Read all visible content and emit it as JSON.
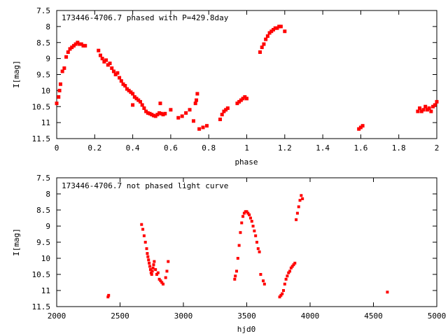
{
  "chart_data": [
    {
      "type": "scatter",
      "title": "173446-4706.7 phased with P=429.8day",
      "xlabel": "phase",
      "ylabel": "I[mag]",
      "xlim": [
        0,
        2
      ],
      "ylim": [
        7.5,
        11.5
      ],
      "y_inverted": true,
      "x_ticks": [
        "0",
        "0.2",
        "0.4",
        "0.6",
        "0.8",
        "1",
        "1.2",
        "1.4",
        "1.6",
        "1.8",
        "2"
      ],
      "y_ticks": [
        "7.5",
        "8",
        "8.5",
        "9",
        "9.5",
        "10",
        "10.5",
        "11",
        "11.5"
      ],
      "marker_color": "#ff0000",
      "series": [
        {
          "x": [
            0.0,
            0.01,
            0.015,
            0.02,
            0.03,
            0.04,
            0.05,
            0.06,
            0.07,
            0.08,
            0.09,
            0.1,
            0.11,
            0.12,
            0.13,
            0.14,
            0.15,
            0.22,
            0.23,
            0.24,
            0.25,
            0.26,
            0.27,
            0.28,
            0.29,
            0.3,
            0.31,
            0.32,
            0.33,
            0.34,
            0.35,
            0.36,
            0.37,
            0.38,
            0.39,
            0.4,
            0.41,
            0.42,
            0.43,
            0.44,
            0.45,
            0.46,
            0.47,
            0.48,
            0.49,
            0.5,
            0.51,
            0.52,
            0.53,
            0.54,
            0.55,
            0.56,
            0.57,
            0.4,
            0.545,
            0.6,
            0.64,
            0.66,
            0.68,
            0.7,
            0.72,
            0.73,
            0.735,
            0.74,
            0.75,
            0.77,
            0.79,
            0.86,
            0.87,
            0.88,
            0.89,
            0.9,
            0.95,
            0.96,
            0.97,
            0.98,
            0.99,
            1.0,
            1.07,
            1.08,
            1.09,
            1.1,
            1.11,
            1.12,
            1.13,
            1.14,
            1.15,
            1.16,
            1.17,
            1.18,
            1.2,
            1.59,
            1.6,
            1.61,
            1.9,
            1.91,
            1.92,
            1.93,
            1.94,
            1.95,
            1.96,
            1.97,
            1.98,
            1.99,
            2.0
          ],
          "y": [
            10.4,
            10.2,
            10.0,
            9.8,
            9.4,
            9.3,
            8.95,
            8.8,
            8.7,
            8.65,
            8.6,
            8.55,
            8.5,
            8.55,
            8.55,
            8.6,
            8.6,
            8.75,
            8.9,
            9.0,
            9.1,
            9.05,
            9.2,
            9.15,
            9.3,
            9.4,
            9.5,
            9.45,
            9.6,
            9.7,
            9.8,
            9.85,
            9.95,
            10.0,
            10.05,
            10.1,
            10.2,
            10.25,
            10.3,
            10.35,
            10.45,
            10.55,
            10.65,
            10.7,
            10.72,
            10.75,
            10.78,
            10.8,
            10.75,
            10.7,
            10.72,
            10.75,
            10.72,
            10.45,
            10.4,
            10.6,
            10.85,
            10.8,
            10.7,
            10.6,
            10.95,
            10.4,
            10.3,
            10.1,
            11.2,
            11.15,
            11.1,
            10.9,
            10.75,
            10.65,
            10.6,
            10.55,
            10.4,
            10.35,
            10.3,
            10.25,
            10.2,
            10.25,
            8.8,
            8.65,
            8.55,
            8.4,
            8.3,
            8.2,
            8.15,
            8.1,
            8.05,
            8.05,
            8.0,
            8.0,
            8.15,
            11.2,
            11.15,
            11.1,
            10.65,
            10.55,
            10.65,
            10.6,
            10.5,
            10.6,
            10.55,
            10.65,
            10.5,
            10.45,
            10.35
          ]
        }
      ]
    },
    {
      "type": "scatter",
      "title": "173446-4706.7 not phased light curve",
      "xlabel": "hjd0",
      "ylabel": "I[mag]",
      "xlim": [
        2000,
        5000
      ],
      "ylim": [
        7.5,
        11.5
      ],
      "y_inverted": true,
      "x_ticks": [
        "2000",
        "2500",
        "3000",
        "3500",
        "4000",
        "4500",
        "5000"
      ],
      "y_ticks": [
        "7.5",
        "8",
        "8.5",
        "9",
        "9.5",
        "10",
        "10.5",
        "11",
        "11.5"
      ],
      "marker_color": "#ff0000",
      "series": [
        {
          "x": [
            2405,
            2410,
            2670,
            2680,
            2690,
            2700,
            2710,
            2715,
            2720,
            2725,
            2730,
            2735,
            2740,
            2745,
            2750,
            2755,
            2760,
            2765,
            2770,
            2780,
            2790,
            2800,
            2810,
            2820,
            2830,
            2840,
            2860,
            2870,
            2880,
            3405,
            3410,
            3420,
            3430,
            3440,
            3450,
            3460,
            3470,
            3480,
            3490,
            3500,
            3510,
            3520,
            3530,
            3540,
            3550,
            3560,
            3570,
            3580,
            3590,
            3600,
            3610,
            3630,
            3640,
            3760,
            3770,
            3780,
            3790,
            3800,
            3810,
            3820,
            3830,
            3840,
            3850,
            3860,
            3870,
            3880,
            3890,
            3900,
            3910,
            3920,
            3930,
            3940,
            4610
          ],
          "y": [
            11.2,
            11.15,
            8.95,
            9.1,
            9.3,
            9.5,
            9.7,
            9.85,
            9.95,
            10.05,
            10.15,
            10.25,
            10.35,
            10.45,
            10.5,
            10.4,
            10.3,
            10.2,
            10.1,
            10.35,
            10.5,
            10.45,
            10.65,
            10.7,
            10.75,
            10.8,
            10.6,
            10.4,
            10.1,
            10.65,
            10.55,
            10.4,
            10.0,
            9.6,
            9.2,
            8.9,
            8.7,
            8.6,
            8.55,
            8.55,
            8.6,
            8.65,
            8.75,
            8.85,
            9.0,
            9.15,
            9.3,
            9.5,
            9.7,
            9.8,
            10.5,
            10.7,
            10.8,
            11.2,
            11.15,
            11.1,
            11.0,
            10.8,
            10.65,
            10.55,
            10.45,
            10.4,
            10.3,
            10.25,
            10.2,
            10.15,
            8.8,
            8.6,
            8.4,
            8.2,
            8.05,
            8.15,
            11.05
          ]
        }
      ]
    }
  ]
}
